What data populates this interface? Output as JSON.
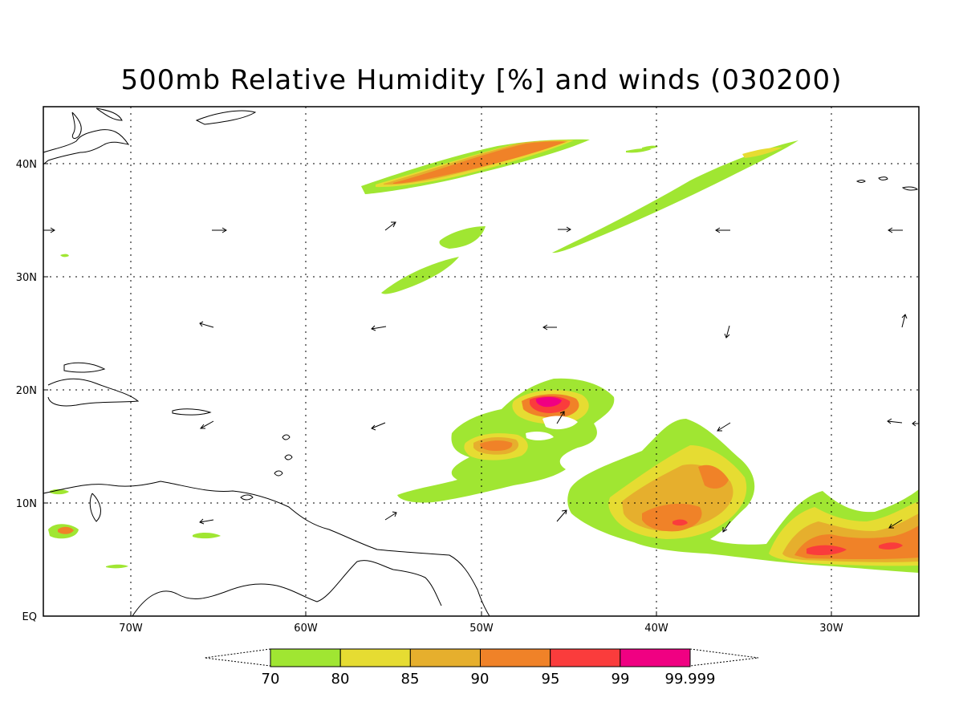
{
  "title": "500mb Relative Humidity [%] and winds (030200)",
  "axes": {
    "lon_ticks": [
      "70W",
      "60W",
      "50W",
      "40W",
      "30W"
    ],
    "lat_ticks": [
      "EQ",
      "10N",
      "20N",
      "30N",
      "40N"
    ]
  },
  "colorbar": {
    "labels": [
      "70",
      "80",
      "85",
      "90",
      "95",
      "99",
      "99.999"
    ],
    "colors": [
      "#a0e632",
      "#e6dc32",
      "#e6af2d",
      "#f08228",
      "#fa3c3c",
      "#f00082"
    ]
  },
  "map_meta": {
    "projection": "lat-lon",
    "lon_range": [
      "75W",
      "25W"
    ],
    "lat_range": [
      "EQ",
      "45N"
    ],
    "grid": "dotted"
  }
}
